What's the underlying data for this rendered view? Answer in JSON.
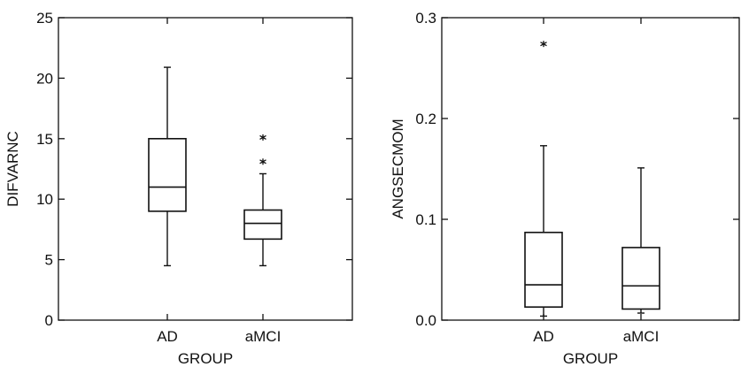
{
  "chart_data": [
    {
      "type": "box",
      "xlabel": "GROUP",
      "ylabel": "DIFVARNC",
      "categories": [
        "AD",
        "aMCI"
      ],
      "ylim": [
        0,
        25
      ],
      "yticks": [
        0,
        5,
        10,
        15,
        20,
        25
      ],
      "ytick_labels": [
        "0",
        "5",
        "10",
        "15",
        "20",
        "25"
      ],
      "boxes": [
        {
          "category": "AD",
          "whisker_low": 4.5,
          "q1": 9.0,
          "median": 11.0,
          "q3": 15.0,
          "whisker_high": 20.9,
          "outliers": []
        },
        {
          "category": "aMCI",
          "whisker_low": 4.5,
          "q1": 6.7,
          "median": 8.0,
          "q3": 9.1,
          "whisker_high": 12.1,
          "outliers": [
            13.1,
            15.1
          ]
        }
      ],
      "grid": false
    },
    {
      "type": "box",
      "xlabel": "GROUP",
      "ylabel": "ANGSECMOM",
      "categories": [
        "AD",
        "aMCI"
      ],
      "ylim": [
        0,
        0.3
      ],
      "yticks": [
        0,
        0.1,
        0.2,
        0.3
      ],
      "ytick_labels": [
        "0.0",
        "0.1",
        "0.2",
        "0.3"
      ],
      "boxes": [
        {
          "category": "AD",
          "whisker_low": 0.004,
          "q1": 0.013,
          "median": 0.035,
          "q3": 0.087,
          "whisker_high": 0.173,
          "outliers": [
            0.274
          ]
        },
        {
          "category": "aMCI",
          "whisker_low": 0.007,
          "q1": 0.011,
          "median": 0.034,
          "q3": 0.072,
          "whisker_high": 0.151,
          "outliers": []
        }
      ],
      "grid": false
    }
  ]
}
